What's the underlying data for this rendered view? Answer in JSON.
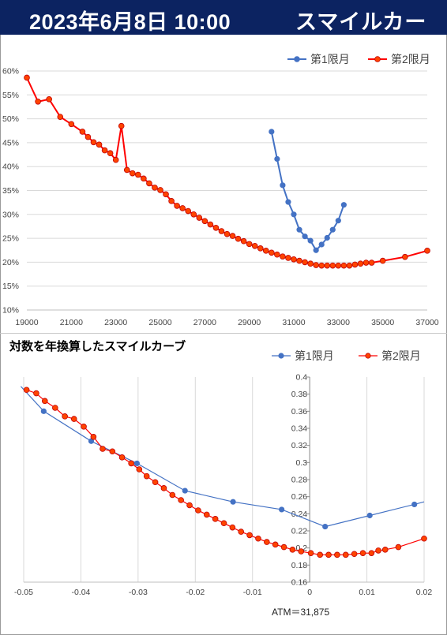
{
  "header": {
    "date": "2023年6月8日 10:00",
    "title": "スマイルカーブ"
  },
  "colors": {
    "header_bg": "#0c2361",
    "series1": "#4472c4",
    "series2": "#ff0000",
    "series2_fill": "#ff4400"
  },
  "chart_data": [
    {
      "type": "line",
      "title": "",
      "xlim": [
        19000,
        37000
      ],
      "ylim": [
        10,
        60
      ],
      "x_ticks": [
        "19000",
        "21000",
        "23000",
        "25000",
        "27000",
        "29000",
        "31000",
        "33000",
        "35000",
        "37000"
      ],
      "y_ticks": [
        "10%",
        "15%",
        "20%",
        "25%",
        "30%",
        "35%",
        "40%",
        "45%",
        "50%",
        "55%",
        "60%"
      ],
      "legend_position": "top-right",
      "series": [
        {
          "name": "第1限月",
          "points": [
            [
              30000,
              47.3
            ],
            [
              30250,
              41.6
            ],
            [
              30500,
              36.1
            ],
            [
              30750,
              32.6
            ],
            [
              31000,
              30.0
            ],
            [
              31250,
              26.8
            ],
            [
              31500,
              25.4
            ],
            [
              31750,
              24.5
            ],
            [
              32000,
              22.5
            ],
            [
              32250,
              23.7
            ],
            [
              32500,
              25.1
            ],
            [
              32750,
              26.8
            ],
            [
              33000,
              28.7
            ],
            [
              33250,
              32.0
            ]
          ]
        },
        {
          "name": "第2限月",
          "points": [
            [
              19000,
              58.6
            ],
            [
              19500,
              53.6
            ],
            [
              20000,
              54.1
            ],
            [
              20500,
              50.4
            ],
            [
              21000,
              48.9
            ],
            [
              21500,
              47.3
            ],
            [
              21750,
              46.2
            ],
            [
              22000,
              45.1
            ],
            [
              22250,
              44.6
            ],
            [
              22500,
              43.4
            ],
            [
              22750,
              42.8
            ],
            [
              23000,
              41.4
            ],
            [
              23250,
              48.5
            ],
            [
              23500,
              39.3
            ],
            [
              23750,
              38.6
            ],
            [
              24000,
              38.3
            ],
            [
              24250,
              37.5
            ],
            [
              24500,
              36.5
            ],
            [
              24750,
              35.6
            ],
            [
              25000,
              35.1
            ],
            [
              25250,
              34.2
            ],
            [
              25500,
              32.8
            ],
            [
              25750,
              31.8
            ],
            [
              26000,
              31.3
            ],
            [
              26250,
              30.7
            ],
            [
              26500,
              30.0
            ],
            [
              26750,
              29.3
            ],
            [
              27000,
              28.6
            ],
            [
              27250,
              27.9
            ],
            [
              27500,
              27.2
            ],
            [
              27750,
              26.5
            ],
            [
              28000,
              25.9
            ],
            [
              28250,
              25.5
            ],
            [
              28500,
              24.9
            ],
            [
              28750,
              24.4
            ],
            [
              29000,
              23.8
            ],
            [
              29250,
              23.4
            ],
            [
              29500,
              22.9
            ],
            [
              29750,
              22.4
            ],
            [
              30000,
              22.0
            ],
            [
              30250,
              21.6
            ],
            [
              30500,
              21.2
            ],
            [
              30750,
              20.9
            ],
            [
              31000,
              20.6
            ],
            [
              31250,
              20.3
            ],
            [
              31500,
              20.0
            ],
            [
              31750,
              19.7
            ],
            [
              32000,
              19.4
            ],
            [
              32250,
              19.3
            ],
            [
              32500,
              19.3
            ],
            [
              32750,
              19.3
            ],
            [
              33000,
              19.3
            ],
            [
              33250,
              19.3
            ],
            [
              33500,
              19.3
            ],
            [
              33750,
              19.5
            ],
            [
              34000,
              19.7
            ],
            [
              34250,
              19.9
            ],
            [
              34500,
              19.9
            ],
            [
              35000,
              20.3
            ],
            [
              36000,
              21.1
            ],
            [
              37000,
              22.4
            ]
          ]
        }
      ]
    },
    {
      "type": "line",
      "title": "対数を年換算したスマイルカーブ",
      "xlim": [
        -0.05,
        0.02
      ],
      "ylim": [
        0.16,
        0.4
      ],
      "x_ticks": [
        "-0.05",
        "-0.04",
        "-0.03",
        "-0.02",
        "-0.01",
        "0",
        "0.01",
        "0.02"
      ],
      "y_ticks": [
        "0.16",
        "0.18",
        "0.2",
        "0.22",
        "0.24",
        "0.26",
        "0.28",
        "0.3",
        "0.32",
        "0.34",
        "0.36",
        "0.38",
        "0.4"
      ],
      "legend_position": "top-right",
      "annotation": "ATM＝31,875",
      "series": [
        {
          "name": "第1限月",
          "points": [
            [
              -0.0505,
              0.389
            ],
            [
              -0.0465,
              0.36
            ],
            [
              -0.0382,
              0.325
            ],
            [
              -0.0302,
              0.299
            ],
            [
              -0.0218,
              0.267
            ],
            [
              -0.0134,
              0.254
            ],
            [
              -0.0049,
              0.245
            ],
            [
              0.0027,
              0.225
            ],
            [
              0.0105,
              0.238
            ],
            [
              0.0183,
              0.251
            ],
            [
              0.02,
              0.254
            ]
          ]
        },
        {
          "name": "第2限月",
          "points": [
            [
              -0.0495,
              0.385
            ],
            [
              -0.0478,
              0.381
            ],
            [
              -0.0463,
              0.372
            ],
            [
              -0.0445,
              0.364
            ],
            [
              -0.0428,
              0.354
            ],
            [
              -0.0412,
              0.351
            ],
            [
              -0.0395,
              0.342
            ],
            [
              -0.0378,
              0.33
            ],
            [
              -0.0362,
              0.316
            ],
            [
              -0.0345,
              0.313
            ],
            [
              -0.0328,
              0.306
            ],
            [
              -0.0312,
              0.299
            ],
            [
              -0.0298,
              0.292
            ],
            [
              -0.0285,
              0.284
            ],
            [
              -0.027,
              0.277
            ],
            [
              -0.0255,
              0.27
            ],
            [
              -0.024,
              0.262
            ],
            [
              -0.0225,
              0.256
            ],
            [
              -0.021,
              0.25
            ],
            [
              -0.0195,
              0.244
            ],
            [
              -0.018,
              0.239
            ],
            [
              -0.0165,
              0.234
            ],
            [
              -0.015,
              0.229
            ],
            [
              -0.0135,
              0.224
            ],
            [
              -0.012,
              0.219
            ],
            [
              -0.0105,
              0.215
            ],
            [
              -0.009,
              0.211
            ],
            [
              -0.0075,
              0.207
            ],
            [
              -0.006,
              0.204
            ],
            [
              -0.0045,
              0.201
            ],
            [
              -0.003,
              0.198
            ],
            [
              -0.0015,
              0.196
            ],
            [
              0.0002,
              0.194
            ],
            [
              0.0018,
              0.192
            ],
            [
              0.0033,
              0.192
            ],
            [
              0.0048,
              0.192
            ],
            [
              0.0063,
              0.192
            ],
            [
              0.0078,
              0.193
            ],
            [
              0.0093,
              0.194
            ],
            [
              0.0108,
              0.194
            ],
            [
              0.012,
              0.197
            ],
            [
              0.0132,
              0.198
            ],
            [
              0.0155,
              0.201
            ],
            [
              0.02,
              0.211
            ]
          ]
        }
      ]
    }
  ]
}
